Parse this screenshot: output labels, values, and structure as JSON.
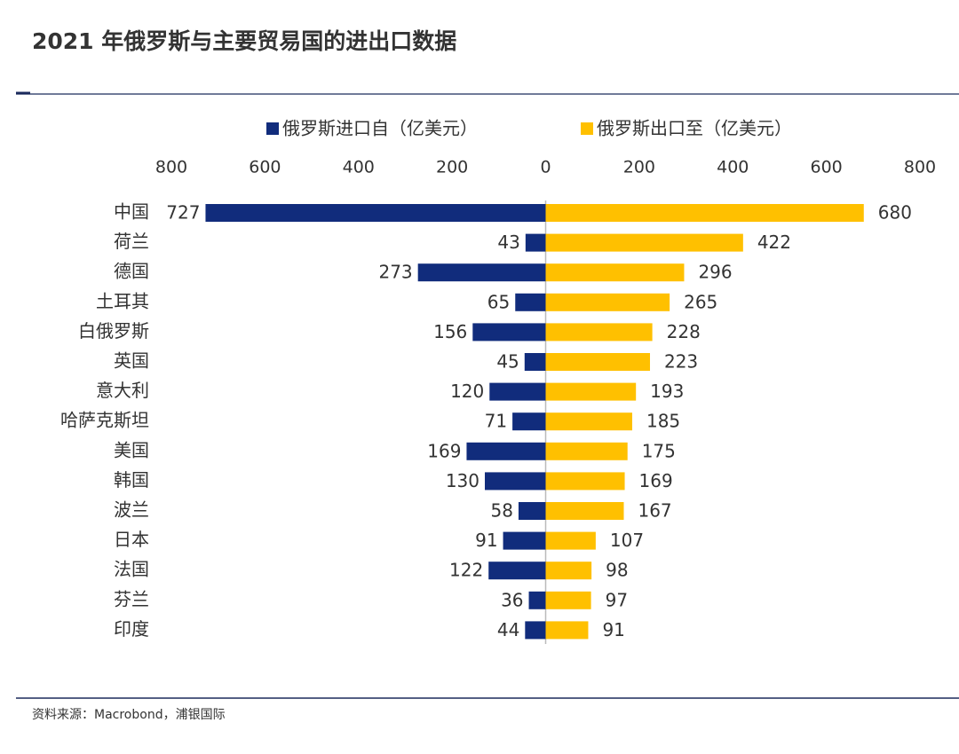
{
  "chart_data": {
    "type": "butterfly_bar",
    "title": "2021 年俄罗斯与主要贸易国的进出口数据",
    "source": "资料来源：Macrobond，浦银国际",
    "categories": [
      "中国",
      "荷兰",
      "德国",
      "土耳其",
      "白俄罗斯",
      "英国",
      "意大利",
      "哈萨克斯坦",
      "美国",
      "韩国",
      "波兰",
      "日本",
      "法国",
      "芬兰",
      "印度"
    ],
    "series": [
      {
        "name": "俄罗斯进口自（亿美元）",
        "color": "#112c7c",
        "side": "left",
        "values": [
          727,
          43,
          273,
          65,
          156,
          45,
          120,
          71,
          169,
          130,
          58,
          91,
          122,
          36,
          44
        ]
      },
      {
        "name": "俄罗斯出口至（亿美元）",
        "color": "#ffc000",
        "side": "right",
        "values": [
          680,
          422,
          296,
          265,
          228,
          223,
          193,
          185,
          175,
          169,
          167,
          107,
          98,
          97,
          91
        ]
      }
    ],
    "xlim": [
      -800,
      800
    ],
    "xticks": [
      {
        "value": -800,
        "label": "800"
      },
      {
        "value": -600,
        "label": "600"
      },
      {
        "value": -400,
        "label": "400"
      },
      {
        "value": -200,
        "label": "200"
      },
      0,
      200,
      400,
      600,
      800
    ],
    "grid": false
  }
}
